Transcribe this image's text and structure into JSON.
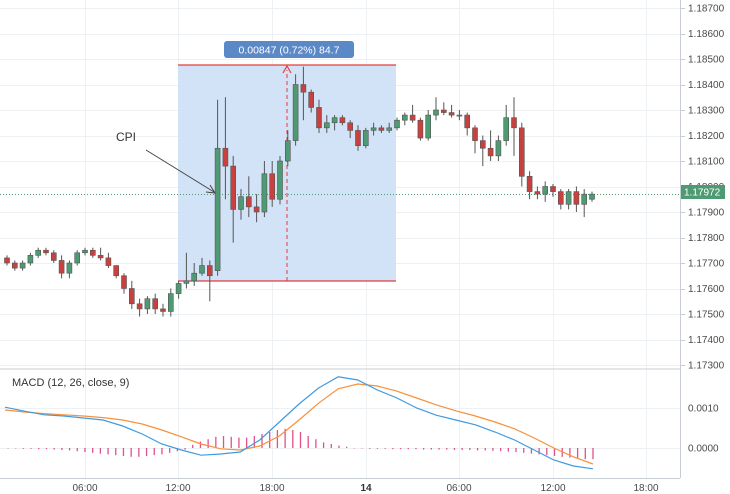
{
  "colors": {
    "up": "#4e9a72",
    "down": "#c9413e",
    "grid": "#eef1f4",
    "measure_fill": "#cddff6",
    "measure_line": "#e33d3d",
    "measure_label_bg": "#5b88c6",
    "last_price": "#4e9a72",
    "macd_line": "#3e9be0",
    "signal_line": "#f7913b",
    "histogram": "#e0508a"
  },
  "price_axis": {
    "labels": [
      "1.18700",
      "1.18600",
      "1.18500",
      "1.18400",
      "1.18300",
      "1.18200",
      "1.18100",
      "1.18000",
      "1.17900",
      "1.17800",
      "1.17700",
      "1.17600",
      "1.17500",
      "1.17400",
      "1.17300"
    ],
    "last_price": "1.17972"
  },
  "time_axis": {
    "labels": [
      {
        "text": "06:00",
        "bold": false
      },
      {
        "text": "12:00",
        "bold": false
      },
      {
        "text": "18:00",
        "bold": false
      },
      {
        "text": "14",
        "bold": true
      },
      {
        "text": "06:00",
        "bold": false
      },
      {
        "text": "12:00",
        "bold": false
      },
      {
        "text": "18:00",
        "bold": false
      }
    ]
  },
  "measure": {
    "label": "0.00847 (0.72%) 84.7",
    "high": 1.1847,
    "low": 1.1762
  },
  "annotation": {
    "text": "CPI"
  },
  "macd": {
    "title": "MACD (12, 26, close, 9)",
    "labels": [
      "0.0010",
      "0.0000"
    ]
  },
  "chart_data": {
    "type": "candlestick",
    "x_ticks": [
      "06:00",
      "12:00",
      "18:00",
      "14",
      "06:00",
      "12:00",
      "18:00"
    ],
    "y_ticks": [
      1.187,
      1.186,
      1.185,
      1.184,
      1.183,
      1.182,
      1.181,
      1.18,
      1.179,
      1.178,
      1.177,
      1.176,
      1.175,
      1.174,
      1.173
    ],
    "ylim": [
      1.1729,
      1.1873
    ],
    "last_price": 1.17972,
    "candles": [
      [
        1.1772,
        1.1773,
        1.1769,
        1.177
      ],
      [
        1.177,
        1.1771,
        1.1767,
        1.1768
      ],
      [
        1.1768,
        1.1771,
        1.1767,
        1.177
      ],
      [
        1.177,
        1.1774,
        1.1769,
        1.1773
      ],
      [
        1.1773,
        1.1776,
        1.1772,
        1.1775
      ],
      [
        1.1775,
        1.1776,
        1.1773,
        1.1774
      ],
      [
        1.1774,
        1.1775,
        1.177,
        1.1771
      ],
      [
        1.1771,
        1.1773,
        1.1764,
        1.1766
      ],
      [
        1.1766,
        1.1771,
        1.1764,
        1.177
      ],
      [
        1.177,
        1.1775,
        1.1769,
        1.1774
      ],
      [
        1.1774,
        1.1776,
        1.1773,
        1.1775
      ],
      [
        1.1775,
        1.1776,
        1.1772,
        1.1773
      ],
      [
        1.1773,
        1.1776,
        1.1771,
        1.1772
      ],
      [
        1.1772,
        1.1774,
        1.1768,
        1.1769
      ],
      [
        1.1769,
        1.1769,
        1.1764,
        1.1765
      ],
      [
        1.1765,
        1.1766,
        1.1758,
        1.176
      ],
      [
        1.176,
        1.1763,
        1.1752,
        1.1754
      ],
      [
        1.1754,
        1.1756,
        1.1749,
        1.1752
      ],
      [
        1.1752,
        1.1757,
        1.175,
        1.1756
      ],
      [
        1.1756,
        1.1758,
        1.175,
        1.1752
      ],
      [
        1.1752,
        1.1754,
        1.1749,
        1.1751
      ],
      [
        1.1751,
        1.176,
        1.1749,
        1.1758
      ],
      [
        1.1758,
        1.1763,
        1.1756,
        1.1762
      ],
      [
        1.1762,
        1.1774,
        1.176,
        1.1763
      ],
      [
        1.1763,
        1.177,
        1.1761,
        1.1766
      ],
      [
        1.1766,
        1.1772,
        1.1765,
        1.1769
      ],
      [
        1.1769,
        1.1771,
        1.1755,
        1.1765
      ],
      [
        1.1767,
        1.1834,
        1.1765,
        1.1815
      ],
      [
        1.1815,
        1.1835,
        1.1795,
        1.1808
      ],
      [
        1.1808,
        1.1812,
        1.1778,
        1.1791
      ],
      [
        1.1791,
        1.1799,
        1.1787,
        1.1796
      ],
      [
        1.1796,
        1.1804,
        1.1788,
        1.1792
      ],
      [
        1.1792,
        1.1797,
        1.1786,
        1.179
      ],
      [
        1.179,
        1.181,
        1.1788,
        1.1805
      ],
      [
        1.1805,
        1.181,
        1.1792,
        1.1795
      ],
      [
        1.1795,
        1.1812,
        1.1793,
        1.181
      ],
      [
        1.181,
        1.1822,
        1.1808,
        1.1818
      ],
      [
        1.1818,
        1.1844,
        1.1816,
        1.184
      ],
      [
        1.184,
        1.1847,
        1.1826,
        1.1837
      ],
      [
        1.1837,
        1.1838,
        1.1829,
        1.1831
      ],
      [
        1.1831,
        1.1834,
        1.1821,
        1.1823
      ],
      [
        1.1823,
        1.1828,
        1.1821,
        1.1825
      ],
      [
        1.1825,
        1.1828,
        1.1822,
        1.1827
      ],
      [
        1.1827,
        1.1828,
        1.1824,
        1.1825
      ],
      [
        1.1825,
        1.1826,
        1.1819,
        1.1822
      ],
      [
        1.1822,
        1.1824,
        1.1814,
        1.1816
      ],
      [
        1.1816,
        1.1823,
        1.1815,
        1.1822
      ],
      [
        1.1822,
        1.1825,
        1.182,
        1.1823
      ],
      [
        1.1823,
        1.1824,
        1.1821,
        1.1822
      ],
      [
        1.1822,
        1.1825,
        1.1821,
        1.1823
      ],
      [
        1.1823,
        1.1827,
        1.1822,
        1.1826
      ],
      [
        1.1826,
        1.1829,
        1.1824,
        1.1828
      ],
      [
        1.1828,
        1.1832,
        1.1825,
        1.1826
      ],
      [
        1.1826,
        1.1827,
        1.1818,
        1.1819
      ],
      [
        1.1819,
        1.183,
        1.1818,
        1.1828
      ],
      [
        1.1828,
        1.1835,
        1.1826,
        1.183
      ],
      [
        1.183,
        1.1833,
        1.1828,
        1.1829
      ],
      [
        1.1829,
        1.1832,
        1.1827,
        1.1828
      ],
      [
        1.1828,
        1.183,
        1.1826,
        1.1828
      ],
      [
        1.1828,
        1.1829,
        1.182,
        1.1823
      ],
      [
        1.1823,
        1.1824,
        1.1813,
        1.1818
      ],
      [
        1.1818,
        1.182,
        1.1808,
        1.1815
      ],
      [
        1.1815,
        1.1822,
        1.181,
        1.1812
      ],
      [
        1.1812,
        1.182,
        1.181,
        1.1818
      ],
      [
        1.1818,
        1.1832,
        1.1816,
        1.1827
      ],
      [
        1.1827,
        1.1835,
        1.1812,
        1.1823
      ],
      [
        1.1823,
        1.1825,
        1.18,
        1.1804
      ],
      [
        1.1804,
        1.1806,
        1.1795,
        1.1798
      ],
      [
        1.1798,
        1.18,
        1.1795,
        1.1797
      ],
      [
        1.1797,
        1.1802,
        1.1794,
        1.18
      ],
      [
        1.18,
        1.1801,
        1.1796,
        1.1798
      ],
      [
        1.1798,
        1.1799,
        1.1791,
        1.1793
      ],
      [
        1.1793,
        1.1799,
        1.1791,
        1.1798
      ],
      [
        1.1798,
        1.18,
        1.179,
        1.1793
      ],
      [
        1.1793,
        1.1799,
        1.1788,
        1.1797
      ],
      [
        1.1795,
        1.1798,
        1.1794,
        1.1797
      ]
    ],
    "macd_series": {
      "macd": [
        0.00102,
        0.00092,
        0.00083,
        0.0008,
        0.00075,
        0.0007,
        0.00055,
        0.00035,
        0.0001,
        -5e-05,
        -0.00018,
        -0.00015,
        -0.0001,
        0.0002,
        0.00065,
        0.0011,
        0.0015,
        0.00178,
        0.0017,
        0.00145,
        0.00125,
        0.001,
        0.00082,
        0.0007,
        0.00058,
        0.0004,
        0.0002,
        -5e-05,
        -0.0003,
        -0.00045,
        -0.00052
      ],
      "signal": [
        0.00095,
        0.0009,
        0.00086,
        0.00083,
        0.0008,
        0.00076,
        0.0007,
        0.0006,
        0.00045,
        0.00028,
        0.0001,
        -2e-05,
        -5e-05,
        5e-05,
        0.0003,
        0.0007,
        0.00112,
        0.00148,
        0.0016,
        0.00155,
        0.00142,
        0.00125,
        0.00108,
        0.00093,
        0.0008,
        0.00065,
        0.00048,
        0.00025,
        0.0,
        -0.00022,
        -0.0004
      ],
      "ylim": [
        -0.0006,
        0.002
      ]
    },
    "macd_histogram": [
      -1e-05,
      -1e-05,
      -2e-05,
      -2e-05,
      -3e-05,
      -3e-05,
      -4e-05,
      -5e-05,
      -6e-05,
      -8e-05,
      -0.0001,
      -0.00012,
      -0.00014,
      -0.00016,
      -0.00018,
      -0.0002,
      -0.00022,
      -0.00022,
      -0.0002,
      -0.00018,
      -0.00016,
      -0.00012,
      -8e-05,
      -4e-05,
      8e-05,
      0.00016,
      0.00022,
      0.00028,
      0.0003,
      0.00028,
      0.00026,
      0.00026,
      0.0003,
      0.00035,
      0.0004,
      0.00045,
      0.00048,
      0.00045,
      0.0004,
      0.0003,
      0.00022,
      0.00014,
      0.0001,
      6e-05,
      3e-05,
      -1e-05,
      -1e-05,
      -2e-05,
      -2e-05,
      -2e-05,
      -3e-05,
      -3e-05,
      -3e-05,
      -3e-05,
      -4e-05,
      -4e-05,
      -4e-05,
      -4e-05,
      -5e-05,
      -5e-05,
      -5e-05,
      -6e-05,
      -6e-05,
      -7e-05,
      -8e-05,
      -9e-05,
      -0.0001,
      -0.00012,
      -0.00014,
      -0.00016,
      -0.00018,
      -0.0002,
      -0.00022,
      -0.00024,
      -0.00026,
      -0.00028,
      -0.00028
    ]
  }
}
